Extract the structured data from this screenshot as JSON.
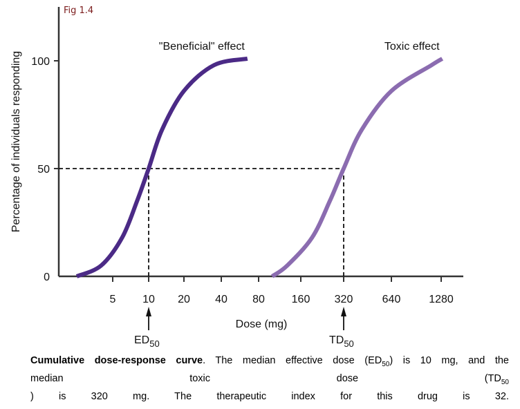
{
  "figure_label": "Fig 1.4",
  "chart_data": {
    "type": "line",
    "xlabel": "Dose (mg)",
    "ylabel": "Percentage of individuals responding",
    "x_scale": "log2",
    "x_ticks": [
      5,
      10,
      20,
      40,
      80,
      160,
      320,
      640,
      1280
    ],
    "y_ticks": [
      0,
      50,
      100
    ],
    "ylim": [
      0,
      100
    ],
    "grid": false,
    "colors": {
      "beneficial": "#4b2a86",
      "toxic": "#8b6cb0"
    },
    "series": [
      {
        "name": "\"Beneficial\" effect",
        "x": [
          2.5,
          4,
          6,
          8,
          10,
          13,
          20,
          35,
          65
        ],
        "y": [
          0,
          5,
          18,
          35,
          50,
          68,
          86,
          98,
          101
        ]
      },
      {
        "name": "Toxic effect",
        "x": [
          100,
          128,
          192,
          256,
          320,
          416,
          640,
          1120,
          1300
        ],
        "y": [
          0,
          5,
          18,
          35,
          50,
          68,
          86,
          98,
          101
        ]
      }
    ],
    "annotations": [
      {
        "label": "ED",
        "sub": "50",
        "x": 10,
        "y": 50
      },
      {
        "label": "TD",
        "sub": "50",
        "x": 320,
        "y": 50
      }
    ]
  },
  "caption": {
    "bold": "Cumulative dose-response curve",
    "line1": ". The median effective dose (ED",
    "line1_sub": "50",
    "line1_end": ") is 10 mg, and the",
    "line2": "median toxic dose (TD",
    "line2_sub": "50",
    "line3": ") is 320 mg. The therapeutic index for this drug is 32."
  }
}
